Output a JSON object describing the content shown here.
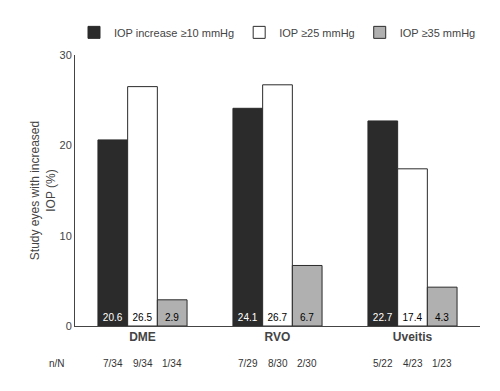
{
  "chart_data": {
    "type": "bar",
    "categories": [
      "DME",
      "RVO",
      "Uveitis"
    ],
    "series": [
      {
        "name": "IOP increase ≥10 mmHg",
        "color": "#2b2b2b",
        "values": [
          20.6,
          24.1,
          22.7
        ],
        "n_labels": [
          "7/34",
          "7/29",
          "5/22"
        ]
      },
      {
        "name": "IOP ≥25 mmHg",
        "color": "#ffffff",
        "values": [
          26.5,
          26.7,
          17.4
        ],
        "n_labels": [
          "9/34",
          "8/30",
          "4/23"
        ]
      },
      {
        "name": "IOP ≥35 mmHg",
        "color": "#b0b0b0",
        "values": [
          2.9,
          6.7,
          4.3
        ],
        "n_labels": [
          "1/34",
          "2/30",
          "1/23"
        ]
      }
    ],
    "n_labels_title": "n/N",
    "ylabel": "Study eyes with increased\nIOP (%)",
    "ylim": [
      0,
      30
    ],
    "yticks": [
      0,
      10,
      20,
      30
    ],
    "grid": false,
    "legend": "top",
    "data_labels": true
  }
}
